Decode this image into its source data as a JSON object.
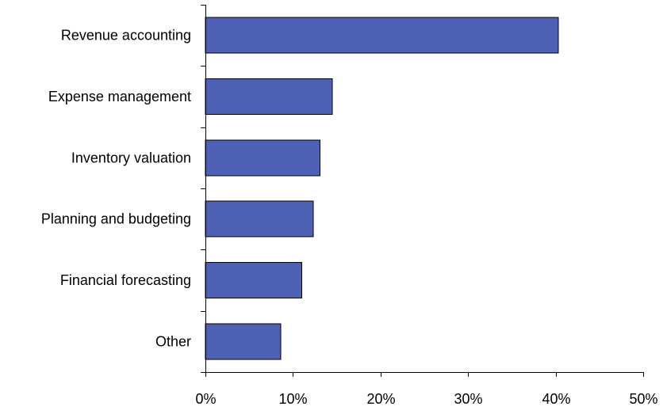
{
  "chart_data": {
    "type": "bar",
    "orientation": "horizontal",
    "title": "",
    "xlabel": "",
    "ylabel": "",
    "categories": [
      "Revenue accounting",
      "Expense management",
      "Inventory valuation",
      "Planning and budgeting",
      "Financial forecasting",
      "Other"
    ],
    "values": [
      40.3,
      14.5,
      13.1,
      12.3,
      11.0,
      8.6
    ],
    "xlim": [
      0,
      50
    ],
    "x_ticks": [
      "0%",
      "10%",
      "20%",
      "30%",
      "40%",
      "50%"
    ],
    "grid": false,
    "legend": "none",
    "bar_color": "#4F61B5"
  }
}
